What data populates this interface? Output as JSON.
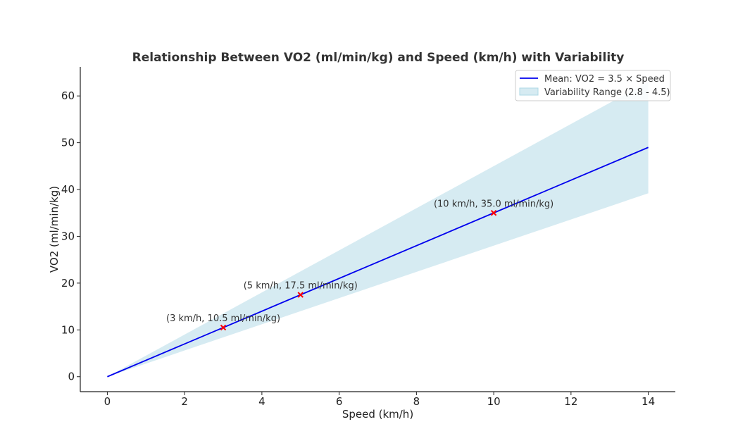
{
  "chart_data": {
    "type": "line",
    "title": "Relationship Between VO2 (ml/min/kg) and Speed (km/h) with Variability",
    "xlabel": "Speed (km/h)",
    "ylabel": "VO2 (ml/min/kg)",
    "xlim": [
      -0.7,
      14.7
    ],
    "ylim": [
      -3.2,
      66.2
    ],
    "xticks": [
      0,
      2,
      4,
      6,
      8,
      10,
      12,
      14
    ],
    "yticks": [
      0,
      10,
      20,
      30,
      40,
      50,
      60
    ],
    "grid": false,
    "legend_position": "top-right",
    "x": [
      0,
      14
    ],
    "series": [
      {
        "name": "Mean: VO2 = 3.5 × Speed",
        "kind": "line",
        "color": "#0000ee",
        "x": [
          0,
          14
        ],
        "y": [
          0,
          49
        ]
      }
    ],
    "band": {
      "name": "Variability Range (2.8 - 4.5)",
      "color": "#add8e6",
      "x": [
        0,
        14
      ],
      "lower": [
        0,
        39.2
      ],
      "upper": [
        0,
        63
      ]
    },
    "markers": [
      {
        "x": 3,
        "y": 10.5,
        "label": "(3 km/h, 10.5 ml/min/kg)"
      },
      {
        "x": 5,
        "y": 17.5,
        "label": "(5 km/h, 17.5 ml/min/kg)"
      },
      {
        "x": 10,
        "y": 35.0,
        "label": "(10 km/h, 35.0 ml/min/kg)"
      }
    ],
    "marker_color": "#ff0000"
  }
}
